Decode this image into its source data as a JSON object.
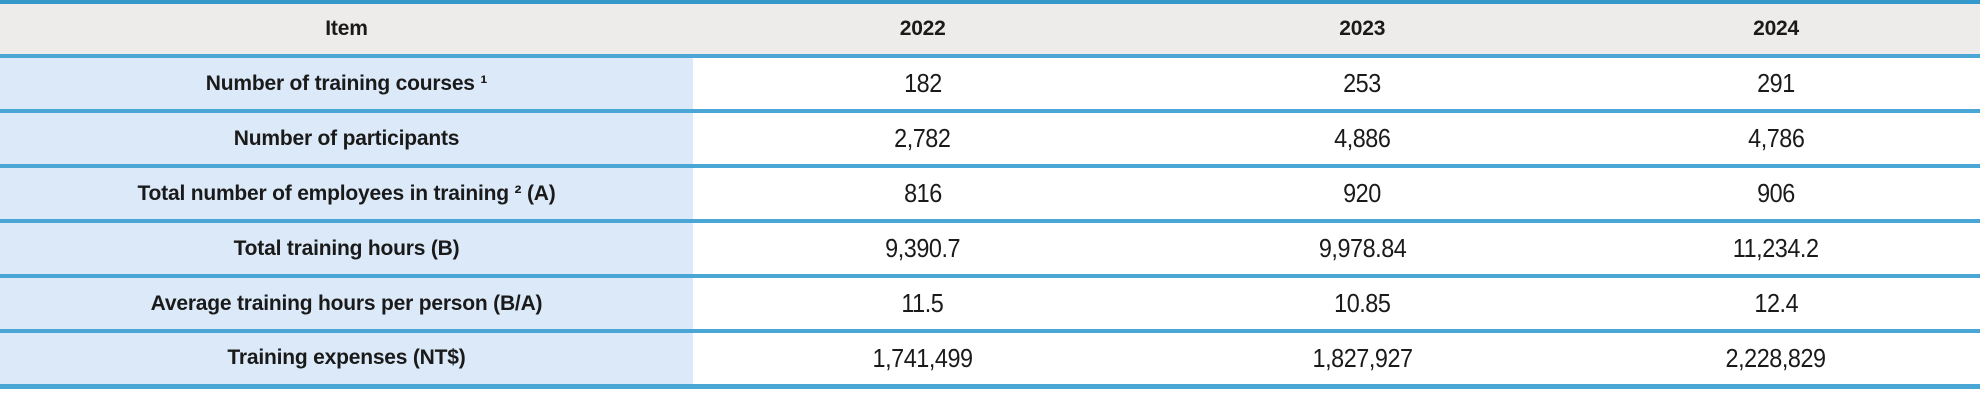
{
  "table": {
    "columns": [
      "Item",
      "2022",
      "2023",
      "2024"
    ],
    "rows": [
      {
        "label": "Number of training courses ¹",
        "values": [
          "182",
          "253",
          "291"
        ]
      },
      {
        "label": "Number of participants",
        "values": [
          "2,782",
          "4,886",
          "4,786"
        ]
      },
      {
        "label": "Total number of employees in training ² (A)",
        "values": [
          "816",
          "920",
          "906"
        ]
      },
      {
        "label": "Total training hours (B)",
        "values": [
          "9,390.7",
          "9,978.84",
          "11,234.2"
        ]
      },
      {
        "label": "Average training hours per person (B/A)",
        "values": [
          "11.5",
          "10.85",
          "12.4"
        ]
      },
      {
        "label": "Training expenses (NT$)",
        "values": [
          "1,741,499",
          "1,827,927",
          "2,228,829"
        ]
      }
    ]
  },
  "colors": {
    "accent_blue": "#4aa6d4",
    "top_border_blue": "#3598cb",
    "header_bg": "#edecea",
    "label_bg": "#dbe9f8",
    "cell_bg": "#ffffff",
    "text": "#1a1a1a"
  }
}
